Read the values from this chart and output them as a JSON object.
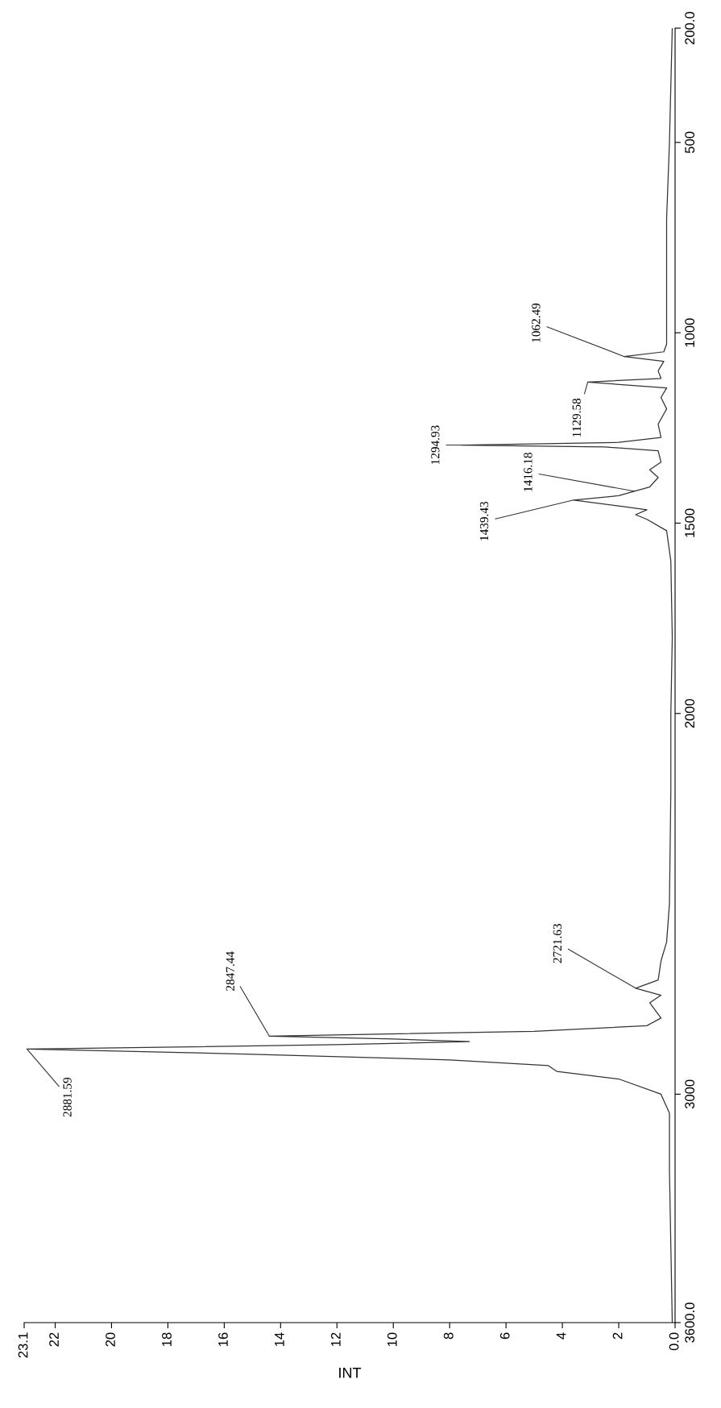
{
  "chart_data": {
    "type": "line",
    "orientation": "horizontal",
    "xlabel": "INT",
    "series": [
      {
        "color": "#333333",
        "x": [
          3600,
          3400,
          3200,
          3050,
          3000,
          2960,
          2940,
          2925,
          2910,
          2895,
          2881.59,
          2870,
          2862,
          2855,
          2847.44,
          2835,
          2820,
          2800,
          2760,
          2740,
          2721.63,
          2700,
          2650,
          2600,
          2500,
          2200,
          2000,
          1800,
          1600,
          1520,
          1490,
          1478,
          1465,
          1455,
          1439.43,
          1428,
          1416.18,
          1405,
          1380,
          1360,
          1340,
          1310,
          1300,
          1294.93,
          1288,
          1275,
          1240,
          1200,
          1170,
          1145,
          1129.58,
          1120,
          1100,
          1075,
          1062.49,
          1050,
          1030,
          900,
          700,
          500,
          200
        ],
        "values": [
          0.1,
          0.15,
          0.2,
          0.2,
          0.5,
          2.0,
          4.2,
          4.5,
          8,
          15,
          23.0,
          12,
          7.3,
          10,
          14.4,
          5,
          1.0,
          0.5,
          0.9,
          0.5,
          1.4,
          0.6,
          0.5,
          0.3,
          0.2,
          0.15,
          0.15,
          0.1,
          0.15,
          0.3,
          1.0,
          1.4,
          1.0,
          2.0,
          3.6,
          2.0,
          1.45,
          0.9,
          0.6,
          0.9,
          0.5,
          0.6,
          2.5,
          7.6,
          2.0,
          0.5,
          0.6,
          0.3,
          0.5,
          0.3,
          3.1,
          0.5,
          0.6,
          0.4,
          1.8,
          0.4,
          0.3,
          0.3,
          0.3,
          0.2,
          0.1
        ]
      }
    ],
    "xlim": [
      23.1,
      0
    ],
    "xticks": [
      23.1,
      22,
      20,
      18,
      16,
      14,
      12,
      10,
      8,
      6,
      4,
      2,
      {
        "value": 0,
        "label": "0.0"
      }
    ],
    "ylim": [
      3600,
      200
    ],
    "yticks": [
      {
        "value": 3600,
        "label": "3600.0"
      },
      3000,
      2000,
      1500,
      1000,
      500,
      {
        "value": 200,
        "label": "200.0"
      }
    ],
    "annotations": [
      {
        "text": "2881.59",
        "x": 23.0,
        "y": 2881.59
      },
      {
        "text": "2847.44",
        "x": 14.4,
        "y": 2847.44
      },
      {
        "text": "2721.63",
        "x": 1.4,
        "y": 2721.63
      },
      {
        "text": "1439.43",
        "x": 3.6,
        "y": 1439.43
      },
      {
        "text": "1416.18",
        "x": 1.45,
        "y": 1416.18
      },
      {
        "text": "1294.93",
        "x": 7.6,
        "y": 1294.93
      },
      {
        "text": "1129.58",
        "x": 3.1,
        "y": 1129.58
      },
      {
        "text": "1062.49",
        "x": 1.8,
        "y": 1062.49
      }
    ],
    "grid": false,
    "legend": false,
    "marker": "none",
    "line_style": "solid"
  }
}
